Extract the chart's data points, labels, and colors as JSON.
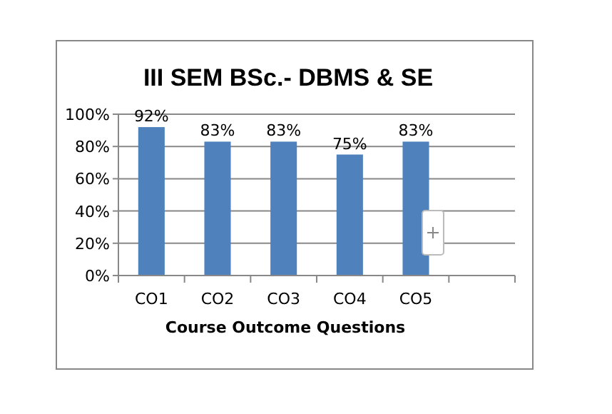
{
  "chart_data": {
    "type": "bar",
    "title": "III SEM BSc.- DBMS & SE",
    "xlabel": "Course Outcome Questions",
    "categories": [
      "CO1",
      "CO2",
      "CO3",
      "CO4",
      "CO5",
      null
    ],
    "values": [
      92,
      83,
      83,
      75,
      83,
      null
    ],
    "value_labels": [
      "92%",
      "83%",
      "83%",
      "75%",
      "83%",
      null
    ],
    "color": "#4f81bd",
    "ylim": [
      0,
      100
    ],
    "yticks": [
      {
        "value": 0,
        "label": "0%"
      },
      {
        "value": 20,
        "label": "20%"
      },
      {
        "value": 40,
        "label": "40%"
      },
      {
        "value": 60,
        "label": "60%"
      },
      {
        "value": 80,
        "label": "80%"
      },
      {
        "value": 100,
        "label": "100%"
      }
    ],
    "grid": "y"
  }
}
